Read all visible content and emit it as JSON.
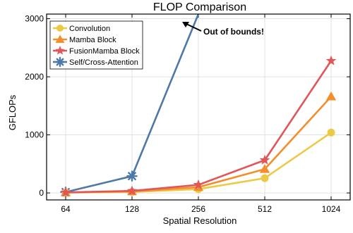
{
  "chart_data": {
    "type": "line",
    "title": "FLOP Comparison",
    "xlabel": "Spatial Resolution",
    "ylabel": "GFLOPs",
    "categories": [
      "64",
      "128",
      "256",
      "512",
      "1024"
    ],
    "yticks": [
      0,
      1000,
      2000,
      3000
    ],
    "yticklabels": [
      "0",
      "1000",
      "2000",
      "3000"
    ],
    "ylim": [
      -120,
      3080
    ],
    "grid": true,
    "legend_position": "top-left",
    "series": [
      {
        "name": "Convolution",
        "color": "#EDC948",
        "marker": "circle",
        "values": [
          6,
          17,
          65,
          255,
          1040
        ]
      },
      {
        "name": "Mamba Block",
        "color": "#F28E2B",
        "marker": "triangle",
        "values": [
          8,
          27,
          100,
          410,
          1660
        ]
      },
      {
        "name": "FusionMamba Block",
        "color": "#E15759",
        "marker": "star",
        "values": [
          10,
          35,
          140,
          565,
          2275
        ]
      },
      {
        "name": "Self/Cross-Attention",
        "color": "#4E79A7",
        "marker": "asterisk",
        "values": [
          15,
          290,
          null,
          null,
          null
        ],
        "offscale_to_x": 256
      }
    ],
    "annotation": {
      "text": "Out of bounds!",
      "points_to_category": "256"
    }
  }
}
